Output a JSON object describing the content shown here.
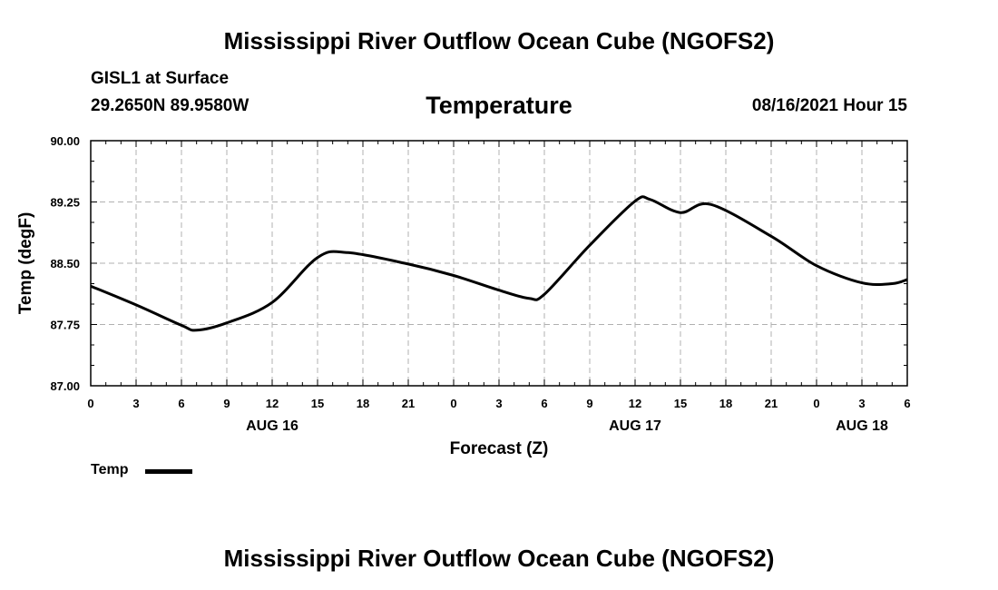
{
  "header": {
    "title_top": "Mississippi River Outflow Ocean Cube (NGOFS2)",
    "title_bottom": "Mississippi River Outflow Ocean Cube (NGOFS2)",
    "station": "GISL1 at Surface",
    "coords": "29.2650N  89.9580W",
    "datetime": "08/16/2021 Hour 15"
  },
  "chart_data": {
    "type": "line",
    "title": "Temperature",
    "xlabel": "Forecast (Z)",
    "ylabel": "Temp (degF)",
    "ylim": [
      87.0,
      90.0
    ],
    "xlim": [
      0,
      54
    ],
    "grid": true,
    "y_ticks": [
      "87.00",
      "87.75",
      "88.50",
      "89.25",
      "90.00"
    ],
    "x_ticks": [
      "0",
      "3",
      "6",
      "9",
      "12",
      "15",
      "18",
      "21",
      "0",
      "3",
      "6",
      "9",
      "12",
      "15",
      "18",
      "21",
      "0",
      "3",
      "6"
    ],
    "day_labels": [
      {
        "label": "AUG 16",
        "hour": 12
      },
      {
        "label": "AUG 17",
        "hour": 36
      },
      {
        "label": "AUG 18",
        "hour": 51
      }
    ],
    "legend": {
      "label": "Temp",
      "placement": "bottom-left"
    },
    "series": [
      {
        "name": "Temp",
        "x": [
          0,
          3,
          6,
          7,
          9,
          12,
          15,
          17,
          21,
          24,
          27,
          29,
          30,
          33,
          36,
          37,
          39,
          41,
          45,
          48,
          51,
          53,
          54
        ],
        "y": [
          88.22,
          87.99,
          87.74,
          87.68,
          87.77,
          88.02,
          88.57,
          88.63,
          88.49,
          88.35,
          88.17,
          88.07,
          88.12,
          88.72,
          89.26,
          89.28,
          89.12,
          89.22,
          88.83,
          88.47,
          88.26,
          88.25,
          88.3
        ]
      }
    ]
  }
}
